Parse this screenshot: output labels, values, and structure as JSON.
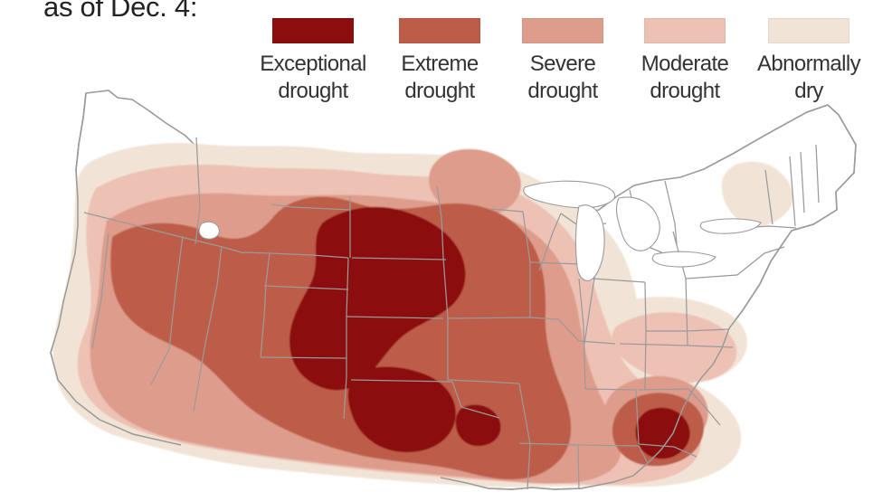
{
  "header": {
    "date_text": "as of Dec. 4:"
  },
  "legend": [
    {
      "label": "Exceptional\ndrought",
      "color": "#8b0d0d"
    },
    {
      "label": "Extreme\ndrought",
      "color": "#bd5d49"
    },
    {
      "label": "Severe\ndrought",
      "color": "#de9d8c"
    },
    {
      "label": "Moderate\ndrought",
      "color": "#edc1b4"
    },
    {
      "label": "Abnormally\ndry",
      "color": "#f1e4d6"
    }
  ],
  "map": {
    "region": "contiguous United States",
    "style": "drought severity choropleth",
    "border_color": "#9a9a9a",
    "background_color": "#ffffff"
  }
}
